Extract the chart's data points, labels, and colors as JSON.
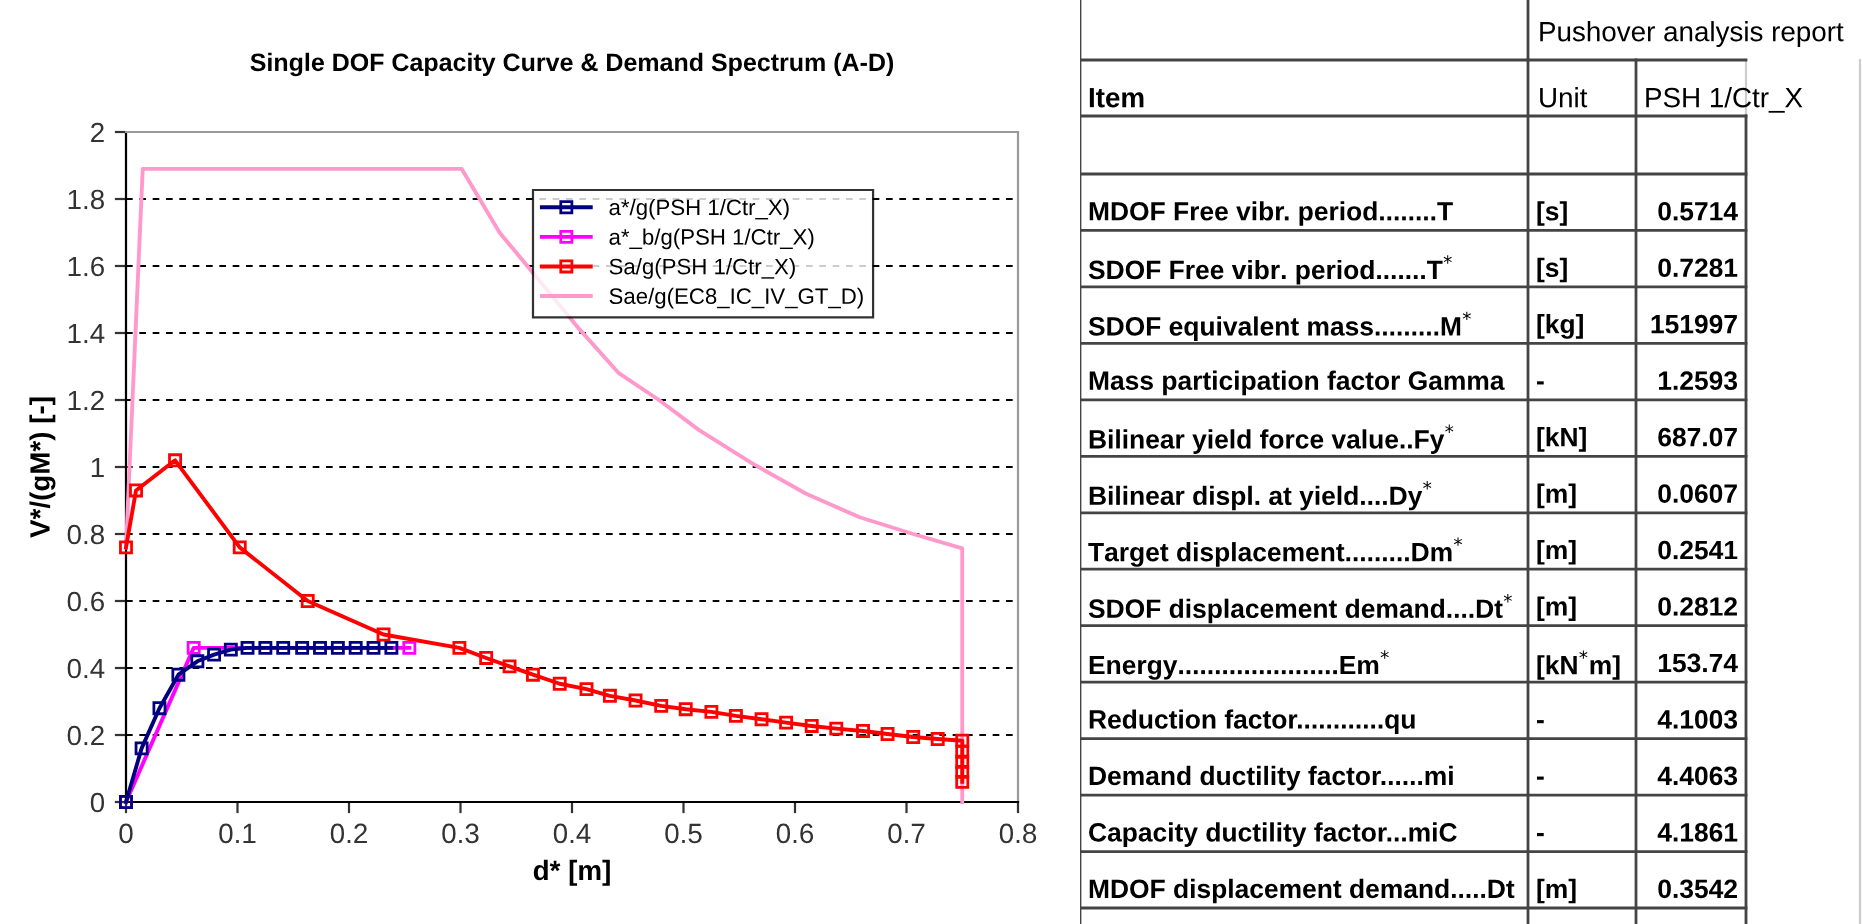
{
  "chart_data": [
    {
      "type": "line",
      "title": "Single DOF Capacity Curve & Demand Spectrum (A-D)",
      "xlabel": "d* [m]",
      "ylabel": "V*/(gM*) [-]",
      "xlim": [
        0,
        0.8
      ],
      "ylim": [
        0,
        2
      ],
      "xticks": [
        0,
        0.1,
        0.2,
        0.3,
        0.4,
        0.5,
        0.6,
        0.7,
        0.8
      ],
      "yticks": [
        0,
        0.2,
        0.4,
        0.6,
        0.8,
        1,
        1.2,
        1.4,
        1.6,
        1.8,
        2
      ],
      "grid": "y",
      "legend": "top right",
      "line_style": "solid",
      "series": [
        {
          "name": "a*/g(PSH 1/Ctr_X)",
          "color": "#000080",
          "marker": "square",
          "x": [
            0,
            0.014,
            0.03,
            0.047,
            0.064,
            0.079,
            0.094,
            0.109,
            0.125,
            0.141,
            0.158,
            0.174,
            0.19,
            0.206,
            0.222,
            0.238
          ],
          "values": [
            0,
            0.16,
            0.28,
            0.38,
            0.42,
            0.44,
            0.455,
            0.46,
            0.46,
            0.46,
            0.46,
            0.46,
            0.46,
            0.46,
            0.46,
            0.46
          ]
        },
        {
          "name": "a*_b/g(PSH 1/Ctr_X)",
          "color": "#ff00ff",
          "marker": "square",
          "x": [
            0,
            0.0607,
            0.2541
          ],
          "values": [
            0,
            0.46,
            0.46
          ]
        },
        {
          "name": "Sa/g(PSH 1/Ctr_X)",
          "color": "#ff0000",
          "marker": "square",
          "x": [
            0,
            0.009,
            0.044,
            0.102,
            0.163,
            0.231,
            0.299,
            0.323,
            0.344,
            0.365,
            0.389,
            0.413,
            0.434,
            0.457,
            0.48,
            0.502,
            0.525,
            0.547,
            0.57,
            0.592,
            0.615,
            0.637,
            0.661,
            0.683,
            0.706,
            0.728,
            0.75,
            0.75,
            0.75,
            0.75,
            0.75
          ],
          "values": [
            0.76,
            0.93,
            1.02,
            0.76,
            0.6,
            0.5,
            0.46,
            0.43,
            0.405,
            0.38,
            0.353,
            0.337,
            0.317,
            0.303,
            0.287,
            0.277,
            0.269,
            0.257,
            0.247,
            0.237,
            0.227,
            0.219,
            0.212,
            0.203,
            0.194,
            0.188,
            0.183,
            0.15,
            0.12,
            0.09,
            0.06
          ]
        },
        {
          "name": "Sae/g(EC8_IC_IV_GT_D)",
          "color": "#ff99cc",
          "marker": "none",
          "x": [
            0,
            0.015,
            0.301,
            0.335,
            0.35,
            0.407,
            0.442,
            0.478,
            0.514,
            0.562,
            0.61,
            0.658,
            0.706,
            0.75,
            0.75
          ],
          "values": [
            0.76,
            1.89,
            1.89,
            1.7,
            1.64,
            1.41,
            1.28,
            1.2,
            1.11,
            1.01,
            0.92,
            0.85,
            0.8,
            0.757,
            0
          ]
        }
      ]
    },
    {
      "type": "other",
      "title": "Pushover analysis report",
      "categories": [
        "Item",
        "Unit",
        "PSH 1/Ctr_X"
      ],
      "y_categories": [
        "MDOF Free vibr. period........T",
        "SDOF Free vibr. period.......T$^{*}$",
        "SDOF equivalent mass.........M$^{*}$",
        "Mass participation factor Gamma",
        "Bilinear yield force value..Fy$^{*}$",
        "Bilinear displ. at yield....Dy$^{*}$",
        "Target displacement.........Dm$^{*}$",
        "SDOF displacement demand....Dt$^{*}$",
        "Energy......................Em$^{*}$",
        "Reduction factor............qu",
        "Demand ductility factor......mi",
        "Capacity ductility factor...miC",
        "MDOF displacement demand.....Dt"
      ],
      "cell_labels": [
        [
          "[s]",
          "0.5714"
        ],
        [
          "[s]",
          "0.7281"
        ],
        [
          "[kg]",
          "151997"
        ],
        [
          "-",
          "1.2593"
        ],
        [
          "[kN]",
          "687.07"
        ],
        [
          "[m]",
          "0.0607"
        ],
        [
          "[m]",
          "0.2541"
        ],
        [
          "[m]",
          "0.2812"
        ],
        [
          "[kN$^{*}$m]",
          "153.74"
        ],
        [
          "-",
          "4.1003"
        ],
        [
          "-",
          "4.4063"
        ],
        [
          "-",
          "4.1861"
        ],
        [
          "[m]",
          "0.3542"
        ]
      ]
    }
  ]
}
